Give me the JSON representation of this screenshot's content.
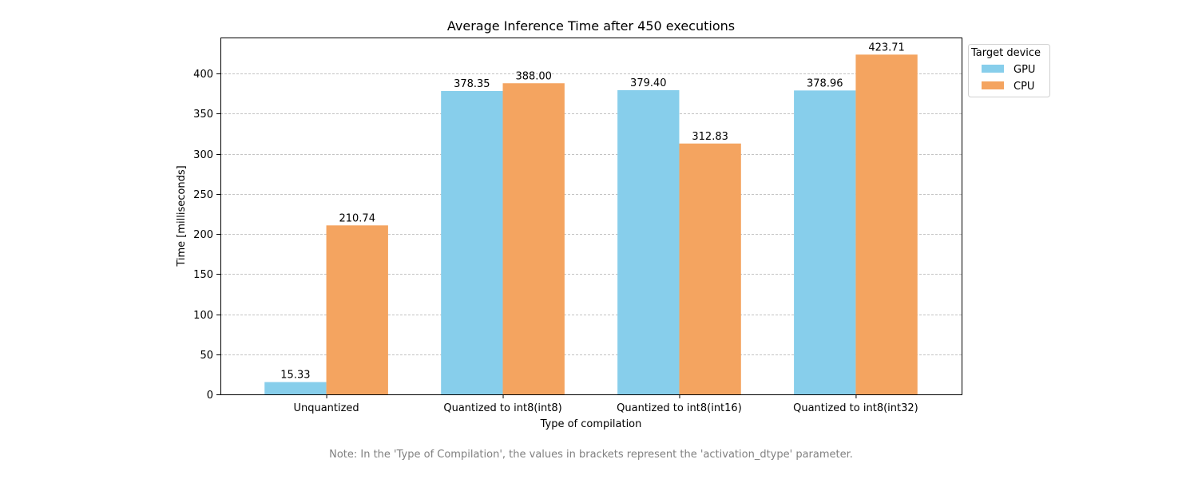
{
  "chart_data": {
    "type": "bar",
    "title": "Average Inference Time after 450 executions",
    "xlabel": "Type of compilation",
    "ylabel": "Time [milliseconds]",
    "categories": [
      "Unquantized",
      "Quantized to int8(int8)",
      "Quantized to int8(int16)",
      "Quantized to int8(int32)"
    ],
    "series": [
      {
        "name": "GPU",
        "color": "#87ceeb",
        "values": [
          15.33,
          378.35,
          379.4,
          378.96
        ],
        "labels": [
          "15.33",
          "378.35",
          "379.40",
          "378.96"
        ]
      },
      {
        "name": "CPU",
        "color": "#f4a460",
        "values": [
          210.74,
          388.0,
          312.83,
          423.71
        ],
        "labels": [
          "210.74",
          "388.00",
          "312.83",
          "423.71"
        ]
      }
    ],
    "ylim": [
      0,
      445
    ],
    "yticks": [
      0,
      50,
      100,
      150,
      200,
      250,
      300,
      350,
      400
    ],
    "grid": "y-dashed",
    "legend": {
      "title": "Target device",
      "placement": "outside-top-right"
    }
  },
  "note": "Note: In the 'Type of Compilation', the values in brackets represent the 'activation_dtype' parameter."
}
